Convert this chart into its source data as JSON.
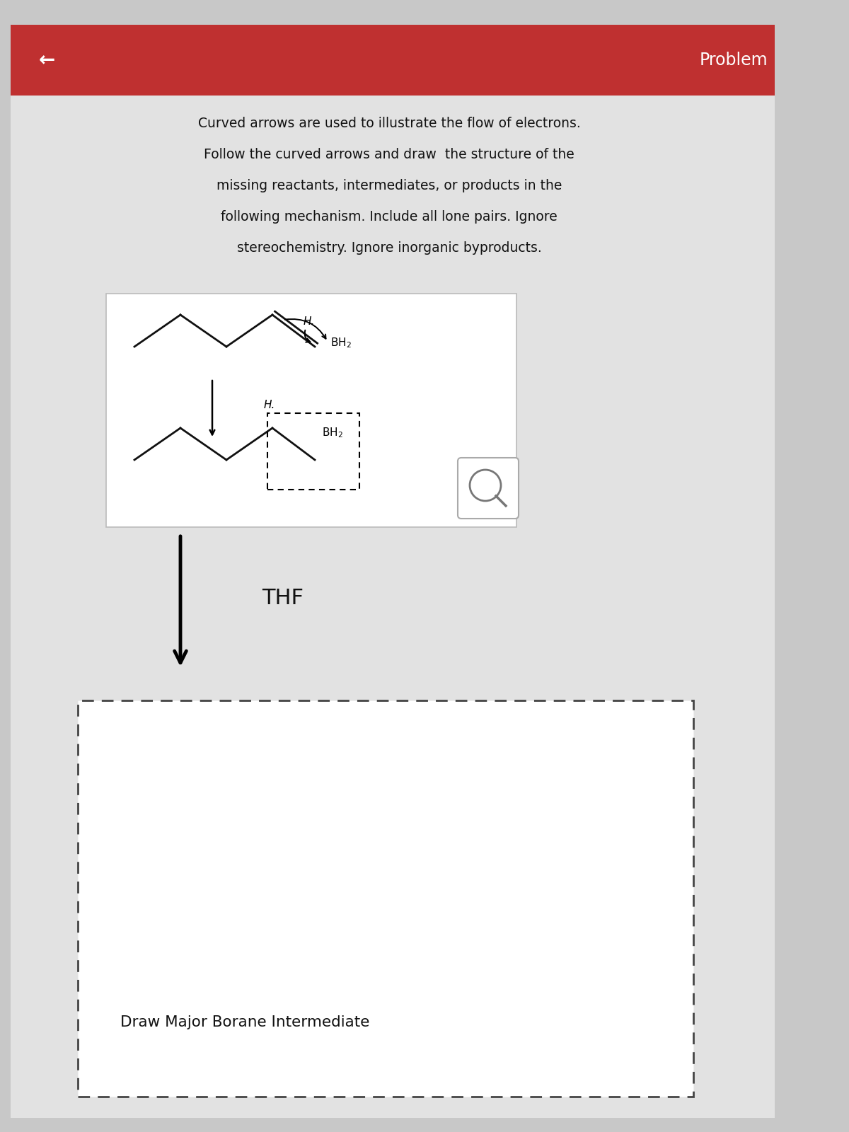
{
  "bg_color": "#c8c8c8",
  "content_bg": "#e2e2e2",
  "header_color": "#bf3030",
  "header_text": "Problem",
  "back_arrow": "←",
  "description_lines": [
    "Curved arrows are used to illustrate the flow of electrons.",
    "Follow the curved arrows and draw  the structure of the",
    "missing reactants, intermediates, or products in the",
    "following mechanism. Include all lone pairs. Ignore",
    "stereochemistry. Ignore inorganic byproducts."
  ],
  "thf_label": "THF",
  "draw_label": "Draw Major Borane Intermediate",
  "text_color": "#111111",
  "white_box_edge": "#bbbbbb",
  "dashed_edge": "#444444",
  "mol_line_color": "#111111",
  "mag_color": "#777777"
}
